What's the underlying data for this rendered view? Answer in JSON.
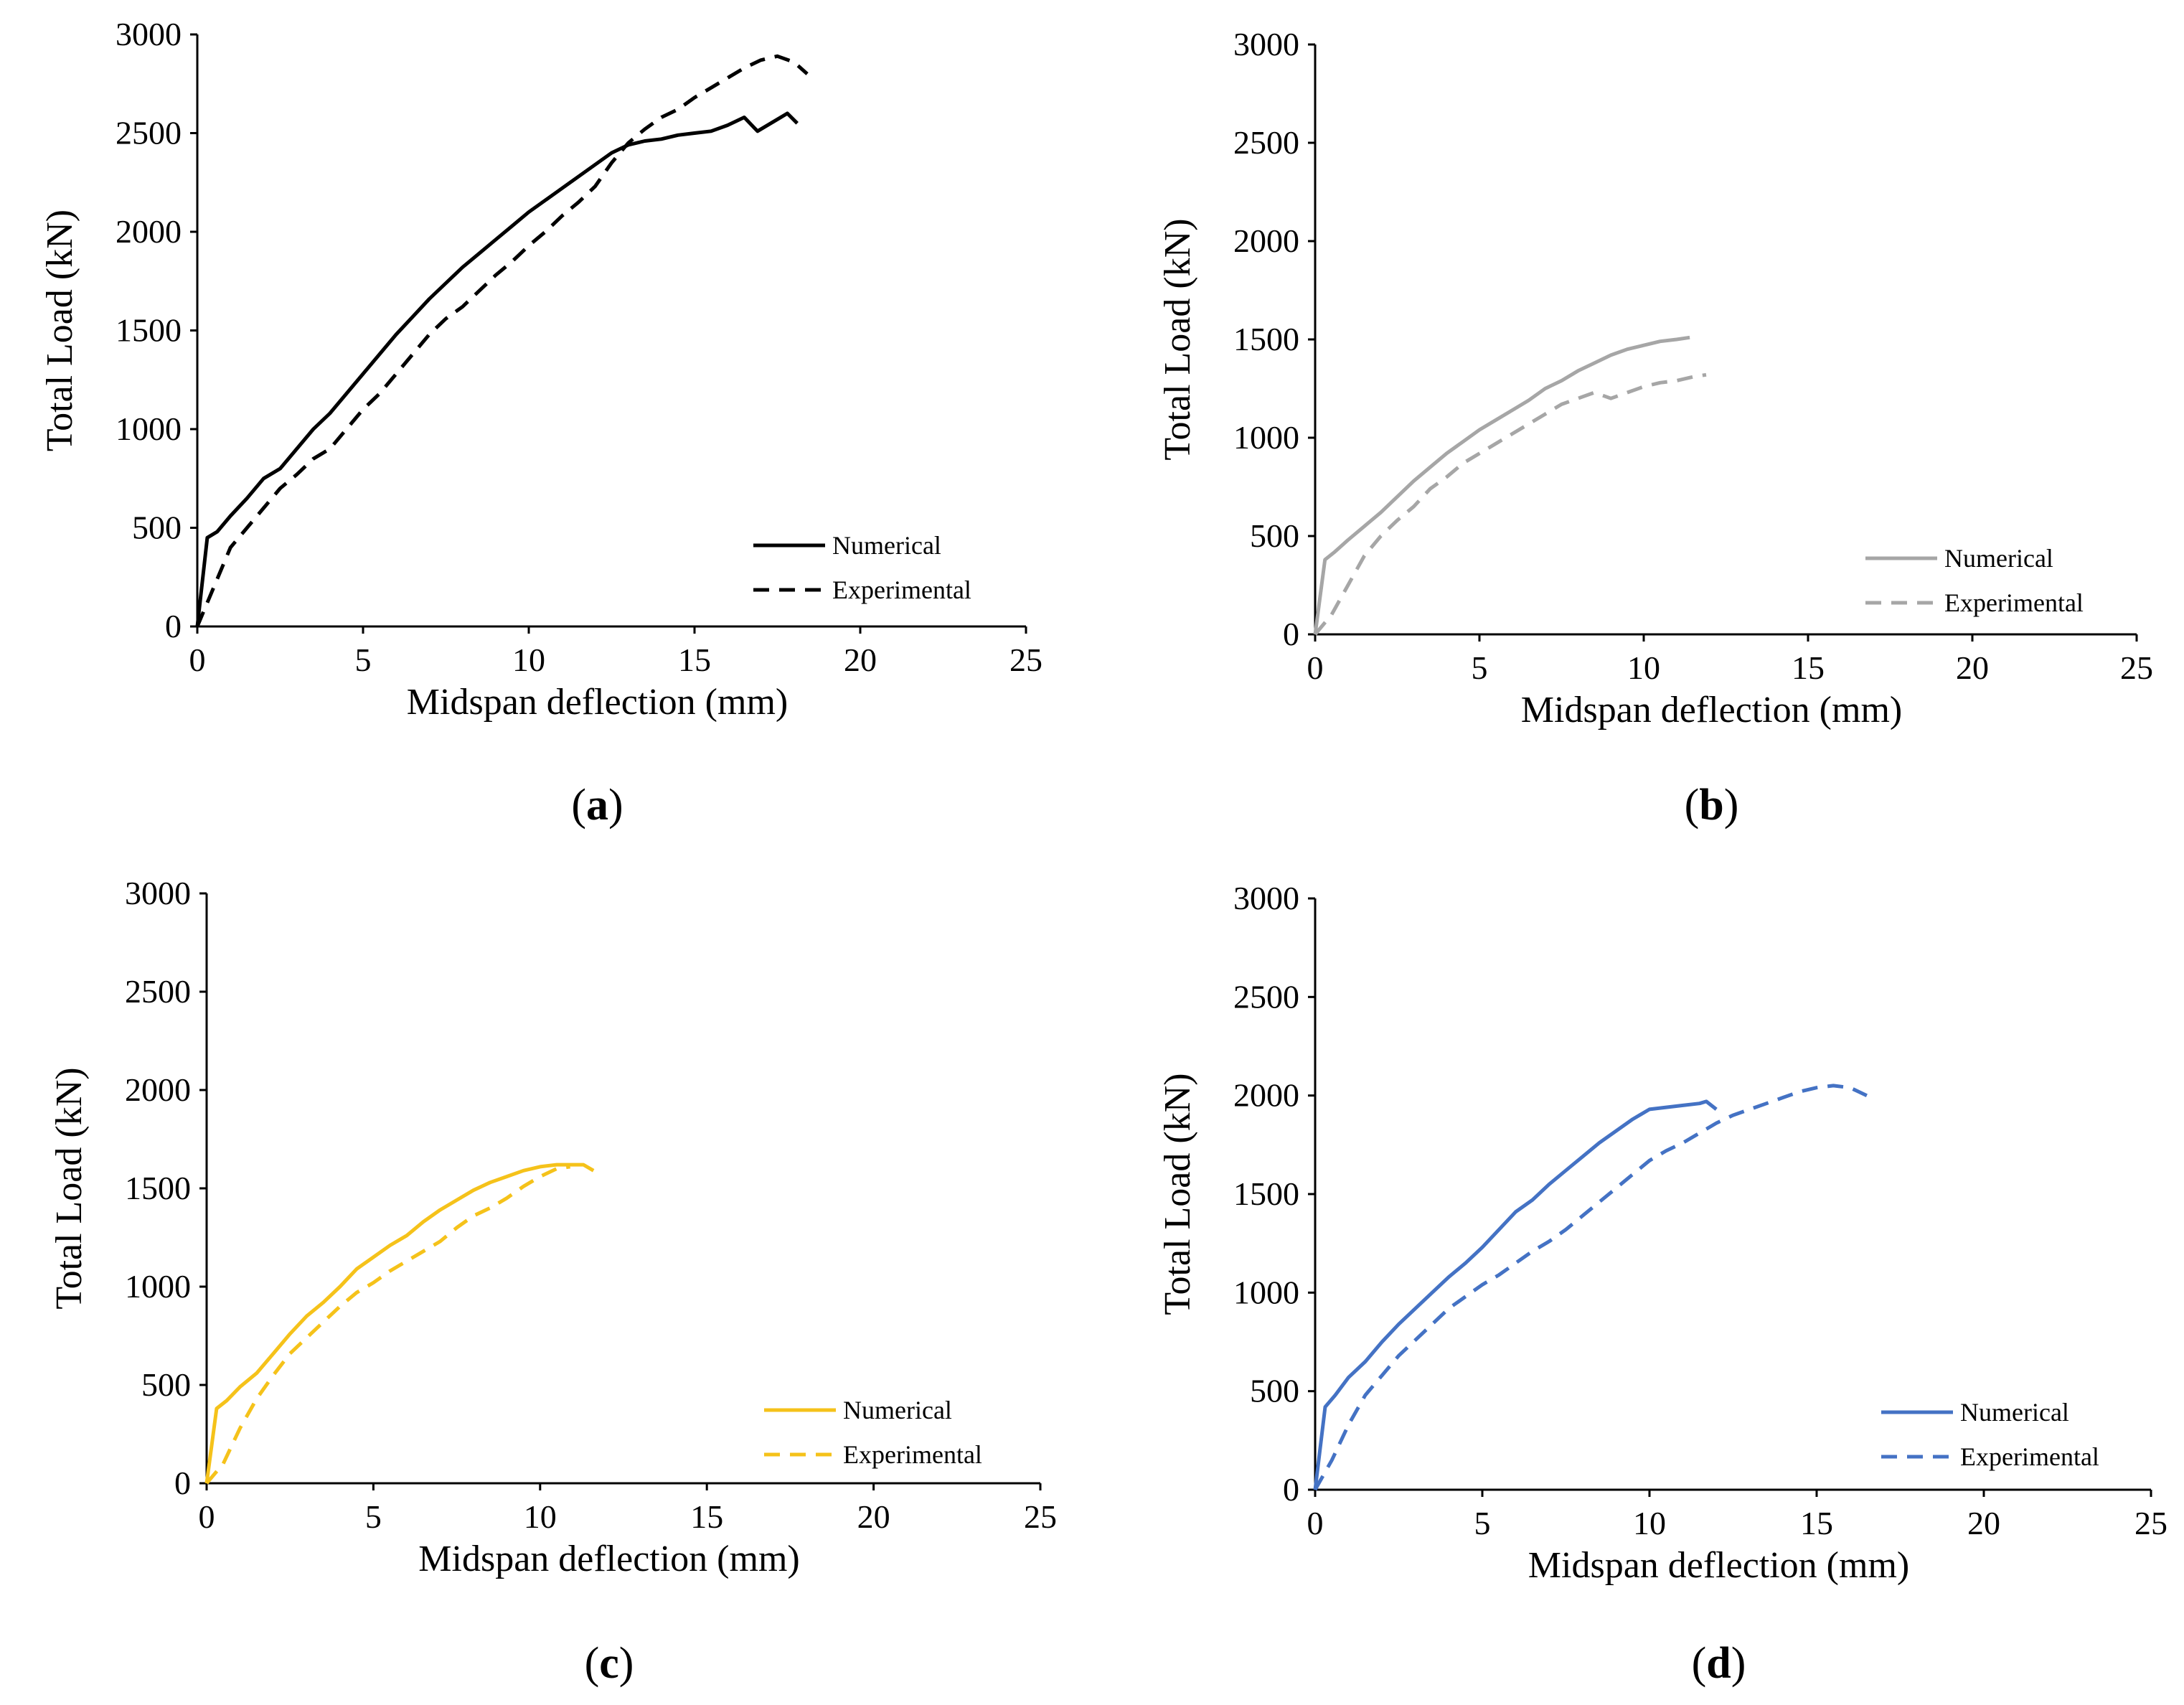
{
  "chart_data": [
    {
      "type": "line",
      "panel_label": "a",
      "xlabel": "Midspan deflection (mm)",
      "ylabel": "Total Load (kN)",
      "xlim": [
        0,
        25
      ],
      "ylim": [
        0,
        3000
      ],
      "xticks": [
        0,
        5,
        10,
        15,
        20,
        25
      ],
      "yticks": [
        0,
        500,
        1000,
        1500,
        2000,
        2500,
        3000
      ],
      "grid": false,
      "legend_position": "bottom-right",
      "series": [
        {
          "name": "Numerical",
          "color": "#000000",
          "dash": "solid",
          "x": [
            0,
            0.3,
            0.6,
            1,
            1.5,
            2,
            2.5,
            3,
            3.5,
            4,
            4.5,
            5,
            5.5,
            6,
            6.5,
            7,
            7.5,
            8,
            8.5,
            9,
            9.5,
            10,
            10.5,
            11,
            11.5,
            12,
            12.5,
            13,
            13.5,
            14,
            14.5,
            15,
            15.5,
            16,
            16.5,
            16.9,
            17.5,
            17.8,
            18.1
          ],
          "y": [
            0,
            450,
            480,
            560,
            650,
            750,
            800,
            900,
            1000,
            1080,
            1180,
            1280,
            1380,
            1480,
            1570,
            1660,
            1740,
            1820,
            1890,
            1960,
            2030,
            2100,
            2160,
            2220,
            2280,
            2340,
            2400,
            2440,
            2460,
            2470,
            2490,
            2500,
            2510,
            2540,
            2580,
            2510,
            2570,
            2600,
            2550
          ]
        },
        {
          "name": "Experimental",
          "color": "#000000",
          "dash": "dashed",
          "x": [
            0,
            0.5,
            1,
            1.5,
            2,
            2.5,
            3,
            3.5,
            4,
            4.5,
            5,
            5.5,
            6,
            6.5,
            7,
            7.5,
            8,
            8.5,
            9,
            9.5,
            10,
            10.5,
            11,
            11.5,
            12,
            12.5,
            13,
            13.5,
            14,
            14.5,
            15,
            15.5,
            16,
            16.5,
            17,
            17.5,
            18,
            18.4
          ],
          "y": [
            0,
            200,
            400,
            500,
            600,
            700,
            770,
            850,
            900,
            1000,
            1100,
            1180,
            1280,
            1380,
            1480,
            1560,
            1620,
            1700,
            1780,
            1850,
            1930,
            2000,
            2080,
            2150,
            2230,
            2350,
            2450,
            2520,
            2580,
            2620,
            2680,
            2730,
            2780,
            2830,
            2870,
            2890,
            2860,
            2800
          ]
        }
      ]
    },
    {
      "type": "line",
      "panel_label": "b",
      "xlabel": "Midspan deflection (mm)",
      "ylabel": "Total Load (kN)",
      "xlim": [
        0,
        25
      ],
      "ylim": [
        0,
        3000
      ],
      "xticks": [
        0,
        5,
        10,
        15,
        20,
        25
      ],
      "yticks": [
        0,
        500,
        1000,
        1500,
        2000,
        2500,
        3000
      ],
      "grid": false,
      "legend_position": "bottom-right",
      "series": [
        {
          "name": "Numerical",
          "color": "#a6a6a6",
          "dash": "solid",
          "x": [
            0,
            0.3,
            0.6,
            1,
            1.5,
            2,
            2.5,
            3,
            3.5,
            4,
            4.5,
            5,
            5.5,
            6,
            6.5,
            7,
            7.5,
            8,
            8.5,
            9,
            9.5,
            10,
            10.5,
            11,
            11.4
          ],
          "y": [
            0,
            380,
            420,
            480,
            550,
            620,
            700,
            780,
            850,
            920,
            980,
            1040,
            1090,
            1140,
            1190,
            1250,
            1290,
            1340,
            1380,
            1420,
            1450,
            1470,
            1490,
            1500,
            1510
          ]
        },
        {
          "name": "Experimental",
          "color": "#a6a6a6",
          "dash": "dashed",
          "x": [
            0,
            0.5,
            1,
            1.5,
            2,
            2.5,
            3,
            3.5,
            4,
            4.5,
            5,
            5.5,
            6,
            6.5,
            7,
            7.5,
            8,
            8.5,
            9,
            9.5,
            10,
            10.5,
            11,
            11.5,
            11.9
          ],
          "y": [
            0,
            100,
            250,
            400,
            500,
            580,
            650,
            740,
            800,
            870,
            920,
            970,
            1020,
            1070,
            1120,
            1170,
            1200,
            1230,
            1200,
            1230,
            1260,
            1280,
            1290,
            1310,
            1320
          ]
        }
      ]
    },
    {
      "type": "line",
      "panel_label": "c",
      "xlabel": "Midspan deflection (mm)",
      "ylabel": "Total Load (kN)",
      "xlim": [
        0,
        25
      ],
      "ylim": [
        0,
        3000
      ],
      "xticks": [
        0,
        5,
        10,
        15,
        20,
        25
      ],
      "yticks": [
        0,
        500,
        1000,
        1500,
        2000,
        2500,
        3000
      ],
      "grid": false,
      "legend_position": "bottom-right",
      "series": [
        {
          "name": "Numerical",
          "color": "#f5c21a",
          "dash": "solid",
          "x": [
            0,
            0.3,
            0.6,
            1,
            1.5,
            2,
            2.5,
            3,
            3.5,
            4,
            4.5,
            5,
            5.5,
            6,
            6.5,
            7,
            7.5,
            8,
            8.5,
            9,
            9.5,
            10,
            10.5,
            11,
            11.3,
            11.6
          ],
          "y": [
            0,
            380,
            420,
            490,
            560,
            660,
            760,
            850,
            920,
            1000,
            1090,
            1150,
            1210,
            1260,
            1330,
            1390,
            1440,
            1490,
            1530,
            1560,
            1590,
            1610,
            1620,
            1620,
            1620,
            1590
          ]
        },
        {
          "name": "Experimental",
          "color": "#f5c21a",
          "dash": "dashed",
          "x": [
            0,
            0.5,
            1,
            1.5,
            2,
            2.5,
            3,
            3.5,
            4,
            4.5,
            5,
            5.5,
            6,
            6.5,
            7,
            7.5,
            8,
            8.5,
            9,
            9.5,
            10,
            10.5,
            10.9
          ],
          "y": [
            0,
            100,
            280,
            430,
            550,
            660,
            740,
            820,
            900,
            970,
            1020,
            1080,
            1130,
            1180,
            1230,
            1300,
            1360,
            1400,
            1450,
            1510,
            1560,
            1600,
            1610
          ]
        }
      ]
    },
    {
      "type": "line",
      "panel_label": "d",
      "xlabel": "Midspan deflection (mm)",
      "ylabel": "Total Load (kN)",
      "xlim": [
        0,
        25
      ],
      "ylim": [
        0,
        3000
      ],
      "xticks": [
        0,
        5,
        10,
        15,
        20,
        25
      ],
      "yticks": [
        0,
        500,
        1000,
        1500,
        2000,
        2500,
        3000
      ],
      "grid": false,
      "legend_position": "bottom-right",
      "series": [
        {
          "name": "Numerical",
          "color": "#4472c4",
          "dash": "solid",
          "x": [
            0,
            0.3,
            0.6,
            1,
            1.5,
            2,
            2.5,
            3,
            3.5,
            4,
            4.5,
            5,
            5.5,
            6,
            6.5,
            7,
            7.5,
            8,
            8.5,
            9,
            9.5,
            10,
            10.5,
            11,
            11.5,
            11.7,
            12
          ],
          "y": [
            0,
            420,
            480,
            570,
            650,
            750,
            840,
            920,
            1000,
            1080,
            1150,
            1230,
            1320,
            1410,
            1470,
            1550,
            1620,
            1690,
            1760,
            1820,
            1880,
            1930,
            1940,
            1950,
            1960,
            1970,
            1930
          ]
        },
        {
          "name": "Experimental",
          "color": "#4472c4",
          "dash": "dashed",
          "x": [
            0,
            0.5,
            1,
            1.5,
            2,
            2.5,
            3,
            3.5,
            4,
            4.5,
            5,
            5.5,
            6,
            6.5,
            7,
            7.5,
            8,
            8.5,
            9,
            9.5,
            10,
            10.5,
            11,
            11.5,
            12,
            12.5,
            13,
            13.5,
            14,
            14.5,
            15,
            15.5,
            16,
            16.5
          ],
          "y": [
            0,
            150,
            330,
            480,
            580,
            680,
            760,
            840,
            920,
            980,
            1040,
            1090,
            1150,
            1210,
            1260,
            1320,
            1390,
            1460,
            1530,
            1600,
            1670,
            1720,
            1760,
            1810,
            1860,
            1900,
            1930,
            1960,
            1990,
            2020,
            2040,
            2050,
            2040,
            2000
          ]
        }
      ]
    }
  ]
}
